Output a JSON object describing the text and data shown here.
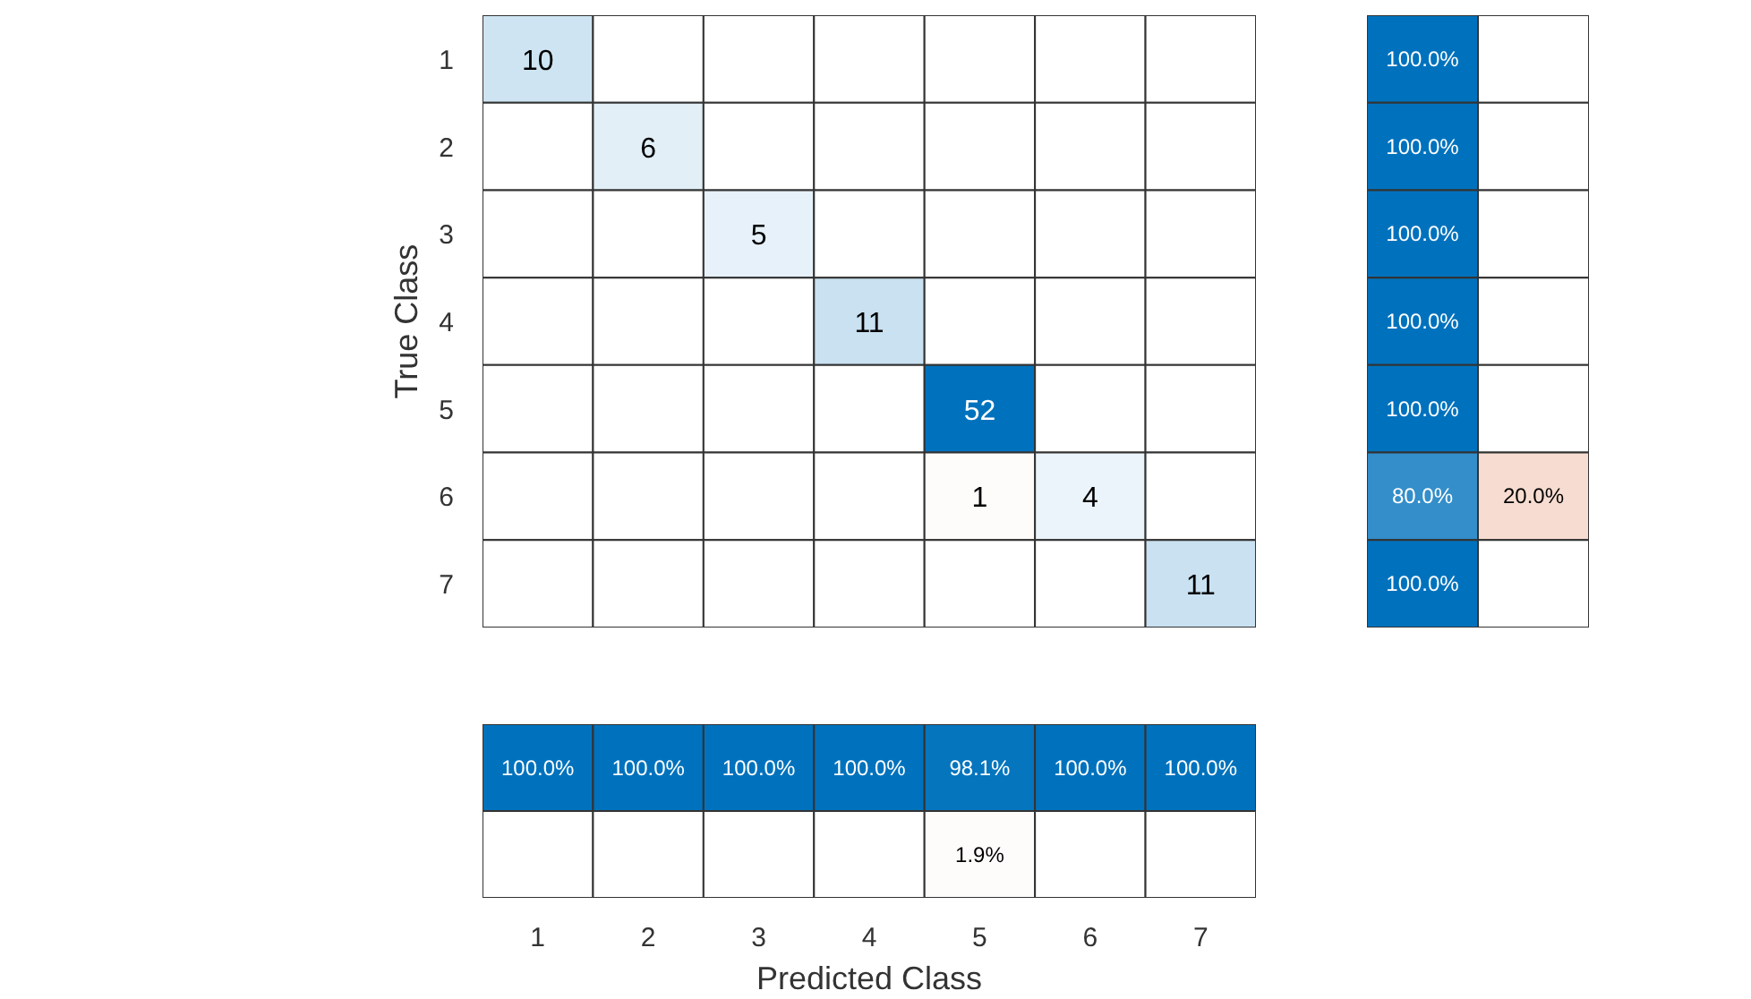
{
  "chart_data": [
    {
      "type": "heatmap",
      "ylabel": "True Class",
      "tick_labels": "y",
      "colors": [
        "#0072bd",
        "#d95319"
      ],
      "categories": [
        "1",
        "2",
        "3",
        "4",
        "5",
        "6",
        "7"
      ],
      "y_categories": [
        "1",
        "2",
        "3",
        "4",
        "5",
        "6",
        "7"
      ],
      "cells": [
        [
          10,
          null,
          null,
          null,
          null,
          null,
          null
        ],
        [
          null,
          6,
          null,
          null,
          null,
          null,
          null
        ],
        [
          null,
          null,
          5,
          null,
          null,
          null,
          null
        ],
        [
          null,
          null,
          null,
          11,
          null,
          null,
          null
        ],
        [
          null,
          null,
          null,
          null,
          52,
          null,
          null
        ],
        [
          null,
          null,
          null,
          null,
          1,
          4,
          null
        ],
        [
          null,
          null,
          null,
          null,
          null,
          null,
          11
        ]
      ],
      "cell_labels": [
        [
          "10",
          null,
          null,
          null,
          null,
          null,
          null
        ],
        [
          null,
          "6",
          null,
          null,
          null,
          null,
          null
        ],
        [
          null,
          null,
          "5",
          null,
          null,
          null,
          null
        ],
        [
          null,
          null,
          null,
          "11",
          null,
          null,
          null
        ],
        [
          null,
          null,
          null,
          null,
          "52",
          null,
          null
        ],
        [
          null,
          null,
          null,
          null,
          "1",
          "4",
          null
        ],
        [
          null,
          null,
          null,
          null,
          null,
          null,
          "11"
        ]
      ]
    },
    {
      "type": "heatmap",
      "tick_labels": false,
      "colors": [
        "#0072bd",
        "#d95319"
      ],
      "categories": [
        null,
        null
      ],
      "y_categories": [
        null,
        null,
        null,
        null,
        null,
        null,
        null
      ],
      "cells": [
        [
          100.0,
          null
        ],
        [
          100.0,
          null
        ],
        [
          100.0,
          null
        ],
        [
          100.0,
          null
        ],
        [
          100.0,
          null
        ],
        [
          80.0,
          20.0
        ],
        [
          100.0,
          null
        ]
      ],
      "cell_labels": [
        [
          "100.0%",
          null
        ],
        [
          "100.0%",
          null
        ],
        [
          "100.0%",
          null
        ],
        [
          "100.0%",
          null
        ],
        [
          "100.0%",
          null
        ],
        [
          "80.0%",
          "20.0%"
        ],
        [
          "100.0%",
          null
        ]
      ]
    },
    {
      "type": "heatmap",
      "xlabel": "Predicted Class",
      "tick_labels": "x",
      "colors": [
        "#0072bd",
        "#d95319"
      ],
      "categories": [
        "1",
        "2",
        "3",
        "4",
        "5",
        "6",
        "7"
      ],
      "y_categories": [
        null,
        null
      ],
      "cells": [
        [
          100.0,
          100.0,
          100.0,
          100.0,
          98.1,
          100.0,
          100.0
        ],
        [
          null,
          null,
          null,
          null,
          1.9,
          null,
          null
        ]
      ],
      "cell_labels": [
        [
          "100.0%",
          "100.0%",
          "100.0%",
          "100.0%",
          "98.1%",
          "100.0%",
          "100.0%"
        ],
        [
          null,
          null,
          null,
          null,
          "1.9%",
          null,
          null
        ]
      ]
    }
  ]
}
